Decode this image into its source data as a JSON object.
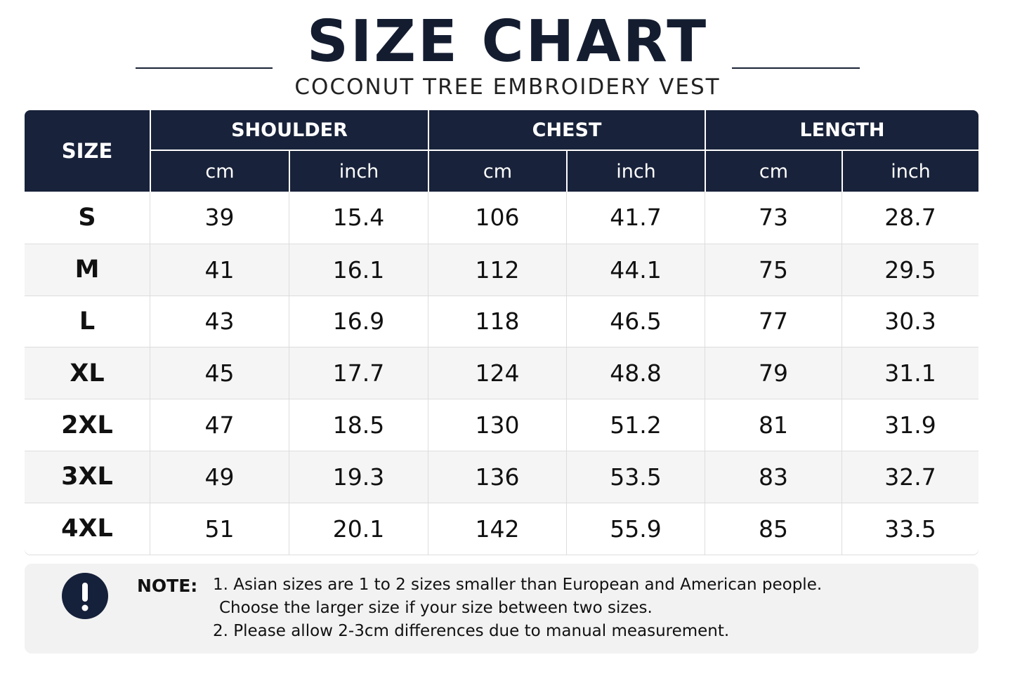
{
  "header": {
    "title": "SIZE CHART",
    "subtitle": "COCONUT TREE EMBROIDERY VEST"
  },
  "table": {
    "size_header": "SIZE",
    "groups": [
      {
        "name": "SHOULDER",
        "units": [
          "cm",
          "inch"
        ]
      },
      {
        "name": "CHEST",
        "units": [
          "cm",
          "inch"
        ]
      },
      {
        "name": "LENGTH",
        "units": [
          "cm",
          "inch"
        ]
      }
    ],
    "rows": [
      [
        "S",
        "39",
        "15.4",
        "106",
        "41.7",
        "73",
        "28.7"
      ],
      [
        "M",
        "41",
        "16.1",
        "112",
        "44.1",
        "75",
        "29.5"
      ],
      [
        "L",
        "43",
        "16.9",
        "118",
        "46.5",
        "77",
        "30.3"
      ],
      [
        "XL",
        "45",
        "17.7",
        "124",
        "48.8",
        "79",
        "31.1"
      ],
      [
        "2XL",
        "47",
        "18.5",
        "130",
        "51.2",
        "81",
        "31.9"
      ],
      [
        "3XL",
        "49",
        "19.3",
        "136",
        "53.5",
        "83",
        "32.7"
      ],
      [
        "4XL",
        "51",
        "20.1",
        "142",
        "55.9",
        "85",
        "33.5"
      ]
    ]
  },
  "note": {
    "label": "NOTE:",
    "lines": [
      "1. Asian sizes are 1 to 2 sizes smaller than European and American people.",
      "Choose the larger size if your size between two sizes.",
      "2. Please allow 2-3cm differences due to manual measurement."
    ]
  }
}
